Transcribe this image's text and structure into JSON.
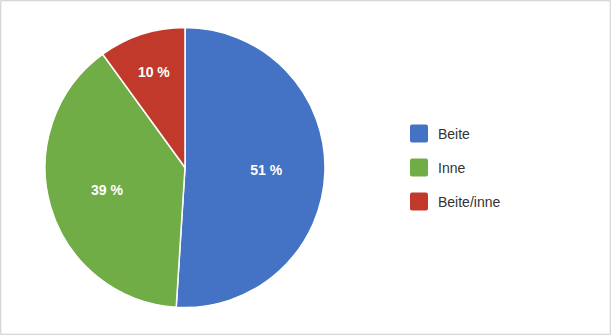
{
  "chart_data": {
    "type": "pie",
    "categories": [
      "Beite",
      "Inne",
      "Beite/inne"
    ],
    "values": [
      51,
      39,
      10
    ],
    "value_labels": [
      "51 %",
      "39 %",
      "10 %"
    ],
    "colors": [
      "#4472C4",
      "#70AD47",
      "#C0392B"
    ],
    "data_labels": true,
    "legend": "right"
  }
}
